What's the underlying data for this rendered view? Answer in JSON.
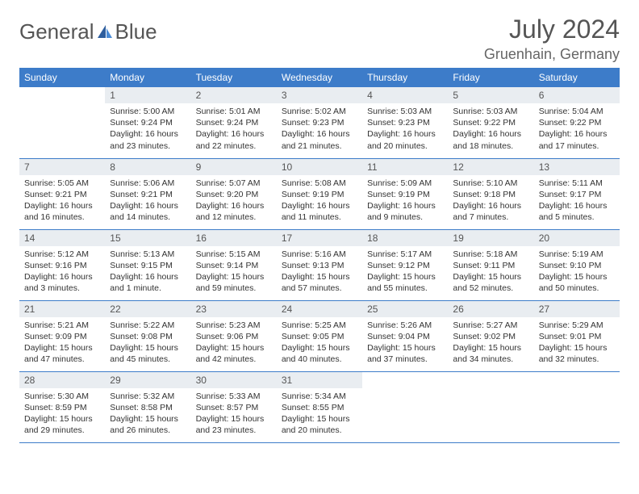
{
  "brand": {
    "general": "General",
    "blue": "Blue"
  },
  "title": "July 2024",
  "location": "Gruenhain, Germany",
  "colors": {
    "header_bg": "#3d7cc9",
    "header_text": "#ffffff",
    "daynum_bg": "#e9edf1",
    "border": "#3d7cc9",
    "body_text": "#333333",
    "title_text": "#555555"
  },
  "typography": {
    "title_fontsize": 32,
    "location_fontsize": 18,
    "header_fontsize": 12,
    "daynum_fontsize": 12,
    "content_fontsize": 10.5
  },
  "weekdays": [
    "Sunday",
    "Monday",
    "Tuesday",
    "Wednesday",
    "Thursday",
    "Friday",
    "Saturday"
  ],
  "weeks": [
    [
      null,
      {
        "n": "1",
        "sr": "Sunrise: 5:00 AM",
        "ss": "Sunset: 9:24 PM",
        "dl": "Daylight: 16 hours and 23 minutes."
      },
      {
        "n": "2",
        "sr": "Sunrise: 5:01 AM",
        "ss": "Sunset: 9:24 PM",
        "dl": "Daylight: 16 hours and 22 minutes."
      },
      {
        "n": "3",
        "sr": "Sunrise: 5:02 AM",
        "ss": "Sunset: 9:23 PM",
        "dl": "Daylight: 16 hours and 21 minutes."
      },
      {
        "n": "4",
        "sr": "Sunrise: 5:03 AM",
        "ss": "Sunset: 9:23 PM",
        "dl": "Daylight: 16 hours and 20 minutes."
      },
      {
        "n": "5",
        "sr": "Sunrise: 5:03 AM",
        "ss": "Sunset: 9:22 PM",
        "dl": "Daylight: 16 hours and 18 minutes."
      },
      {
        "n": "6",
        "sr": "Sunrise: 5:04 AM",
        "ss": "Sunset: 9:22 PM",
        "dl": "Daylight: 16 hours and 17 minutes."
      }
    ],
    [
      {
        "n": "7",
        "sr": "Sunrise: 5:05 AM",
        "ss": "Sunset: 9:21 PM",
        "dl": "Daylight: 16 hours and 16 minutes."
      },
      {
        "n": "8",
        "sr": "Sunrise: 5:06 AM",
        "ss": "Sunset: 9:21 PM",
        "dl": "Daylight: 16 hours and 14 minutes."
      },
      {
        "n": "9",
        "sr": "Sunrise: 5:07 AM",
        "ss": "Sunset: 9:20 PM",
        "dl": "Daylight: 16 hours and 12 minutes."
      },
      {
        "n": "10",
        "sr": "Sunrise: 5:08 AM",
        "ss": "Sunset: 9:19 PM",
        "dl": "Daylight: 16 hours and 11 minutes."
      },
      {
        "n": "11",
        "sr": "Sunrise: 5:09 AM",
        "ss": "Sunset: 9:19 PM",
        "dl": "Daylight: 16 hours and 9 minutes."
      },
      {
        "n": "12",
        "sr": "Sunrise: 5:10 AM",
        "ss": "Sunset: 9:18 PM",
        "dl": "Daylight: 16 hours and 7 minutes."
      },
      {
        "n": "13",
        "sr": "Sunrise: 5:11 AM",
        "ss": "Sunset: 9:17 PM",
        "dl": "Daylight: 16 hours and 5 minutes."
      }
    ],
    [
      {
        "n": "14",
        "sr": "Sunrise: 5:12 AM",
        "ss": "Sunset: 9:16 PM",
        "dl": "Daylight: 16 hours and 3 minutes."
      },
      {
        "n": "15",
        "sr": "Sunrise: 5:13 AM",
        "ss": "Sunset: 9:15 PM",
        "dl": "Daylight: 16 hours and 1 minute."
      },
      {
        "n": "16",
        "sr": "Sunrise: 5:15 AM",
        "ss": "Sunset: 9:14 PM",
        "dl": "Daylight: 15 hours and 59 minutes."
      },
      {
        "n": "17",
        "sr": "Sunrise: 5:16 AM",
        "ss": "Sunset: 9:13 PM",
        "dl": "Daylight: 15 hours and 57 minutes."
      },
      {
        "n": "18",
        "sr": "Sunrise: 5:17 AM",
        "ss": "Sunset: 9:12 PM",
        "dl": "Daylight: 15 hours and 55 minutes."
      },
      {
        "n": "19",
        "sr": "Sunrise: 5:18 AM",
        "ss": "Sunset: 9:11 PM",
        "dl": "Daylight: 15 hours and 52 minutes."
      },
      {
        "n": "20",
        "sr": "Sunrise: 5:19 AM",
        "ss": "Sunset: 9:10 PM",
        "dl": "Daylight: 15 hours and 50 minutes."
      }
    ],
    [
      {
        "n": "21",
        "sr": "Sunrise: 5:21 AM",
        "ss": "Sunset: 9:09 PM",
        "dl": "Daylight: 15 hours and 47 minutes."
      },
      {
        "n": "22",
        "sr": "Sunrise: 5:22 AM",
        "ss": "Sunset: 9:08 PM",
        "dl": "Daylight: 15 hours and 45 minutes."
      },
      {
        "n": "23",
        "sr": "Sunrise: 5:23 AM",
        "ss": "Sunset: 9:06 PM",
        "dl": "Daylight: 15 hours and 42 minutes."
      },
      {
        "n": "24",
        "sr": "Sunrise: 5:25 AM",
        "ss": "Sunset: 9:05 PM",
        "dl": "Daylight: 15 hours and 40 minutes."
      },
      {
        "n": "25",
        "sr": "Sunrise: 5:26 AM",
        "ss": "Sunset: 9:04 PM",
        "dl": "Daylight: 15 hours and 37 minutes."
      },
      {
        "n": "26",
        "sr": "Sunrise: 5:27 AM",
        "ss": "Sunset: 9:02 PM",
        "dl": "Daylight: 15 hours and 34 minutes."
      },
      {
        "n": "27",
        "sr": "Sunrise: 5:29 AM",
        "ss": "Sunset: 9:01 PM",
        "dl": "Daylight: 15 hours and 32 minutes."
      }
    ],
    [
      {
        "n": "28",
        "sr": "Sunrise: 5:30 AM",
        "ss": "Sunset: 8:59 PM",
        "dl": "Daylight: 15 hours and 29 minutes."
      },
      {
        "n": "29",
        "sr": "Sunrise: 5:32 AM",
        "ss": "Sunset: 8:58 PM",
        "dl": "Daylight: 15 hours and 26 minutes."
      },
      {
        "n": "30",
        "sr": "Sunrise: 5:33 AM",
        "ss": "Sunset: 8:57 PM",
        "dl": "Daylight: 15 hours and 23 minutes."
      },
      {
        "n": "31",
        "sr": "Sunrise: 5:34 AM",
        "ss": "Sunset: 8:55 PM",
        "dl": "Daylight: 15 hours and 20 minutes."
      },
      null,
      null,
      null
    ]
  ]
}
